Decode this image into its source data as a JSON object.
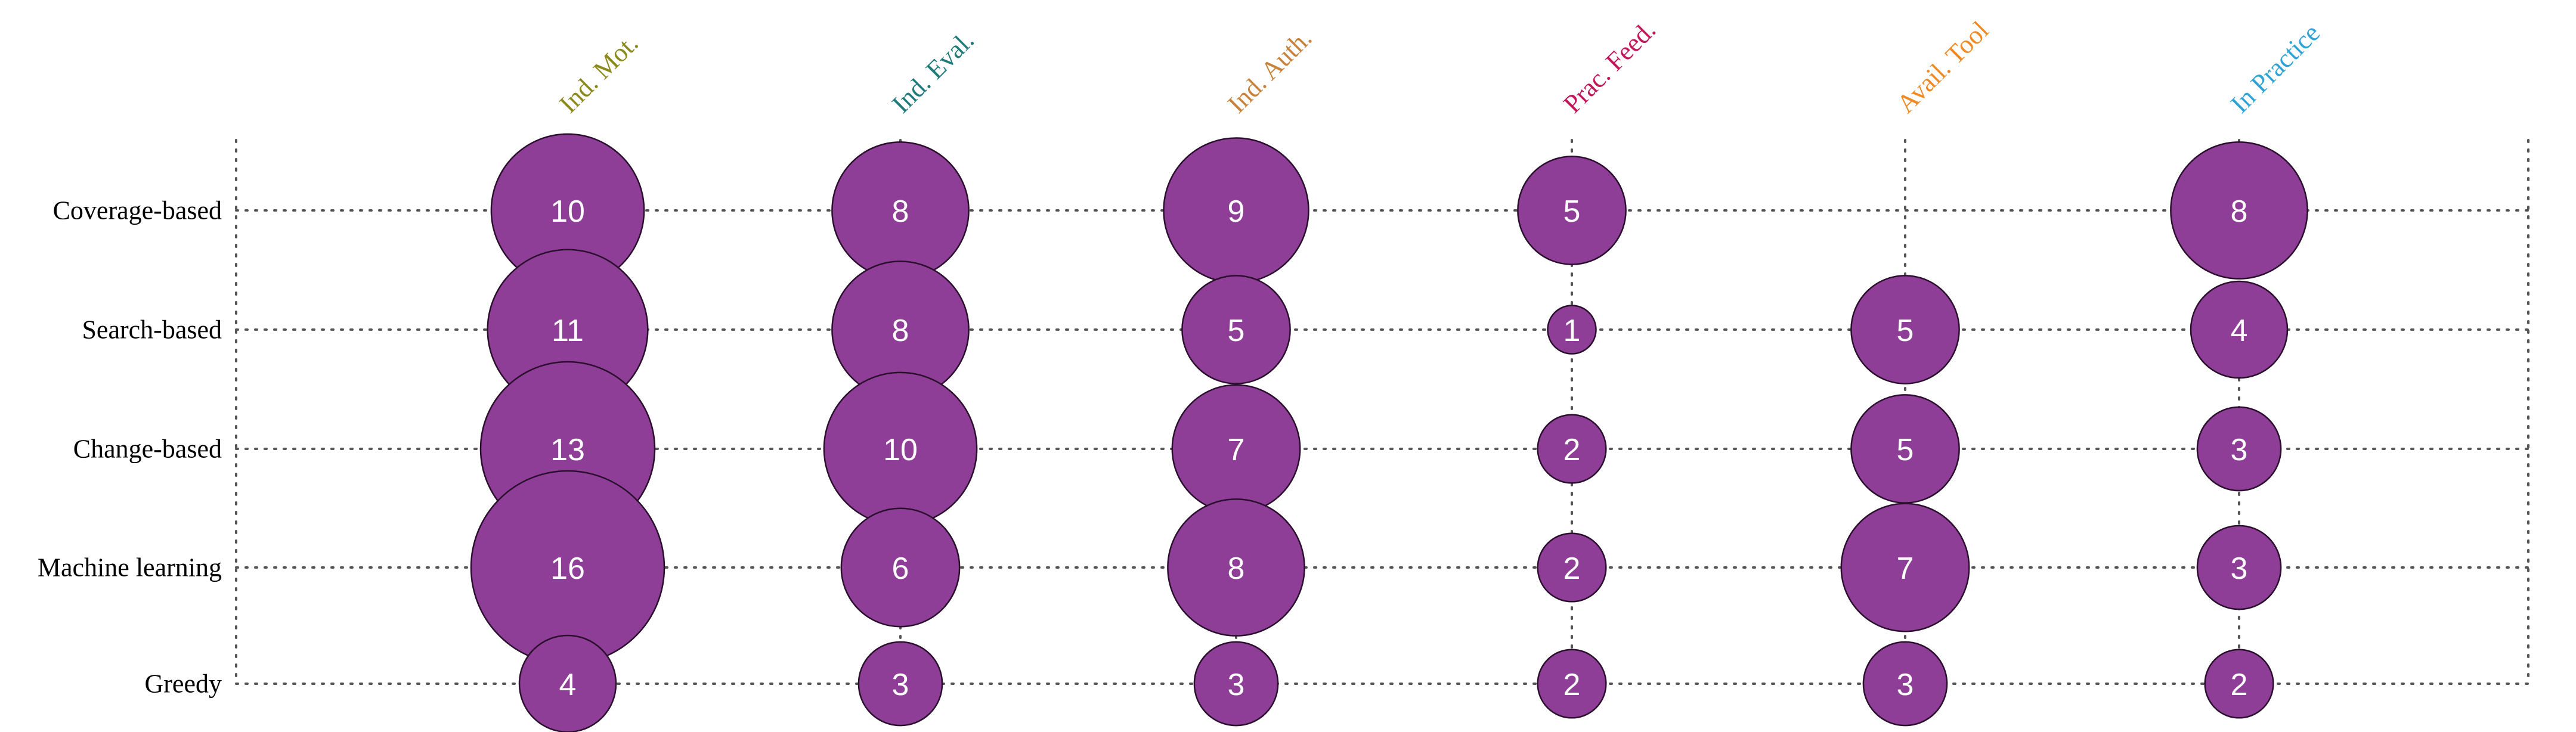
{
  "chart_data": {
    "type": "bubble-matrix",
    "title": "",
    "rows": [
      "Coverage-based",
      "Search-based",
      "Change-based",
      "Machine learning",
      "Greedy"
    ],
    "columns": [
      {
        "label": "Ind. Mot.",
        "color": "#8a8a1a"
      },
      {
        "label": "Ind. Eval.",
        "color": "#1f7a7a"
      },
      {
        "label": "Ind. Auth.",
        "color": "#c8823a"
      },
      {
        "label": "Prac. Feed.",
        "color": "#c2185b"
      },
      {
        "label": "Avail. Tool",
        "color": "#f08a24"
      },
      {
        "label": "In Practice",
        "color": "#2ea3d6"
      }
    ],
    "values": [
      [
        10,
        8,
        9,
        5,
        null,
        8
      ],
      [
        11,
        8,
        5,
        1,
        5,
        4
      ],
      [
        13,
        10,
        7,
        2,
        5,
        3
      ],
      [
        16,
        6,
        8,
        2,
        7,
        3
      ],
      [
        4,
        3,
        3,
        2,
        3,
        2
      ]
    ],
    "bubble_color": "#8e3e96",
    "grid": true
  }
}
